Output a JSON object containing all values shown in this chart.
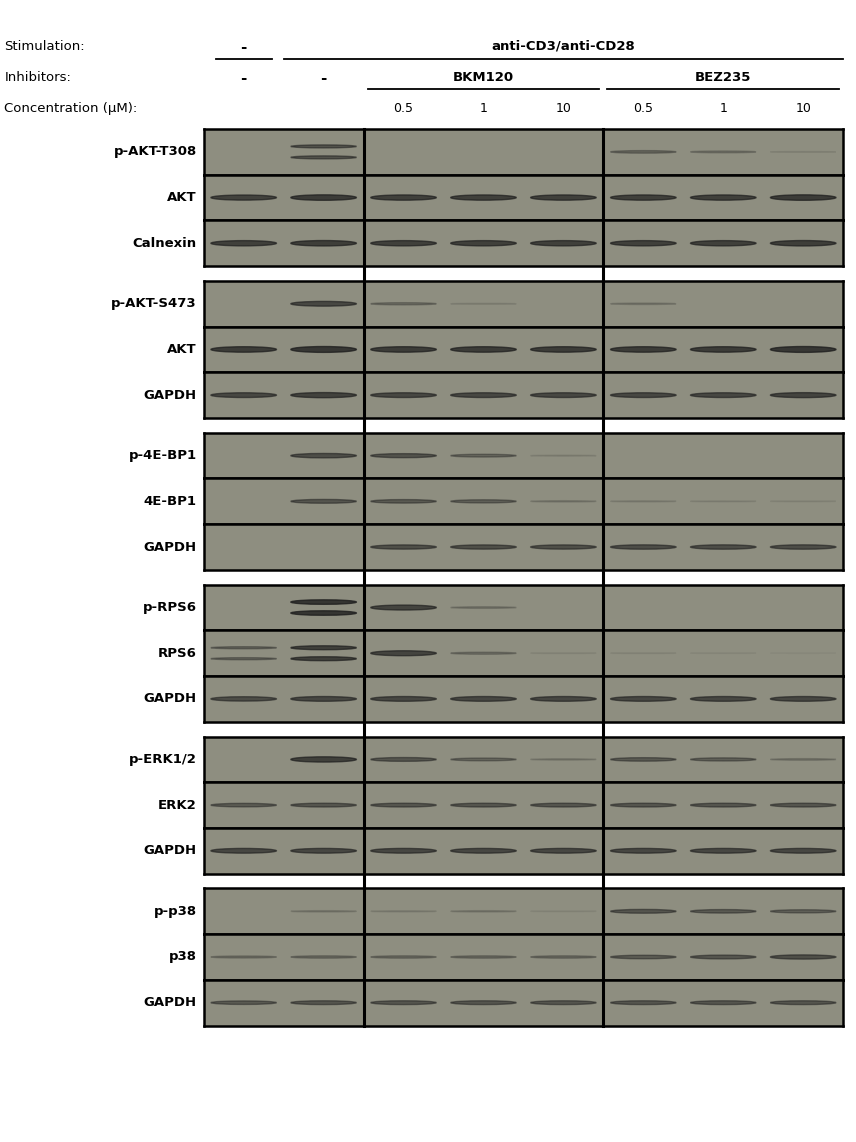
{
  "stimulation_label": "Stimulation:",
  "inhibitors_label": "Inhibitors:",
  "concentration_label": "Concentration (μM):",
  "concentration_values": [
    "0.5",
    "1",
    "10",
    "0.5",
    "1",
    "10"
  ],
  "all_groups": [
    {
      "rows": [
        {
          "label": "p-AKT-T308",
          "lane_intensities": [
            0.0,
            0.55,
            0.0,
            0.0,
            0.0,
            0.35,
            0.25,
            0.1
          ],
          "n_bands": [
            0,
            2,
            0,
            0,
            0,
            1,
            1,
            1
          ],
          "bold_label": true
        },
        {
          "label": "AKT",
          "lane_intensities": [
            0.7,
            0.75,
            0.72,
            0.72,
            0.72,
            0.72,
            0.72,
            0.75
          ],
          "n_bands": [
            1,
            1,
            1,
            1,
            1,
            1,
            1,
            1
          ],
          "bold_label": false
        },
        {
          "label": "Calnexin",
          "lane_intensities": [
            0.72,
            0.74,
            0.72,
            0.72,
            0.72,
            0.72,
            0.72,
            0.74
          ],
          "n_bands": [
            1,
            1,
            1,
            1,
            1,
            1,
            1,
            1
          ],
          "bold_label": false
        }
      ]
    },
    {
      "rows": [
        {
          "label": "p-AKT-S473",
          "lane_intensities": [
            0.0,
            0.65,
            0.3,
            0.12,
            0.0,
            0.2,
            0.0,
            0.0
          ],
          "n_bands": [
            0,
            1,
            1,
            1,
            0,
            1,
            0,
            0
          ],
          "bold_label": true
        },
        {
          "label": "AKT",
          "lane_intensities": [
            0.75,
            0.8,
            0.75,
            0.75,
            0.75,
            0.75,
            0.75,
            0.8
          ],
          "n_bands": [
            1,
            1,
            1,
            1,
            1,
            1,
            1,
            1
          ],
          "bold_label": false
        },
        {
          "label": "GAPDH",
          "lane_intensities": [
            0.65,
            0.7,
            0.65,
            0.65,
            0.65,
            0.65,
            0.65,
            0.68
          ],
          "n_bands": [
            1,
            1,
            1,
            1,
            1,
            1,
            1,
            1
          ],
          "bold_label": false
        }
      ]
    },
    {
      "rows": [
        {
          "label": "p-4E-BP1",
          "lane_intensities": [
            0.0,
            0.6,
            0.55,
            0.38,
            0.12,
            0.0,
            0.0,
            0.0
          ],
          "n_bands": [
            0,
            1,
            1,
            1,
            1,
            0,
            0,
            0
          ],
          "bold_label": true
        },
        {
          "label": "4E-BP1",
          "lane_intensities": [
            0.0,
            0.52,
            0.48,
            0.43,
            0.18,
            0.14,
            0.11,
            0.09
          ],
          "n_bands": [
            0,
            1,
            1,
            1,
            1,
            1,
            1,
            1
          ],
          "bold_label": false
        },
        {
          "label": "GAPDH",
          "lane_intensities": [
            0.0,
            0.0,
            0.58,
            0.58,
            0.58,
            0.6,
            0.6,
            0.6
          ],
          "n_bands": [
            0,
            0,
            1,
            1,
            1,
            1,
            1,
            1
          ],
          "bold_label": false
        }
      ]
    },
    {
      "rows": [
        {
          "label": "p-RPS6",
          "lane_intensities": [
            0.0,
            0.82,
            0.68,
            0.22,
            0.0,
            0.0,
            0.0,
            0.0
          ],
          "n_bands": [
            0,
            2,
            1,
            1,
            0,
            0,
            0,
            0
          ],
          "bold_label": true
        },
        {
          "label": "RPS6",
          "lane_intensities": [
            0.38,
            0.72,
            0.68,
            0.28,
            0.08,
            0.08,
            0.06,
            0.04
          ],
          "n_bands": [
            2,
            2,
            1,
            1,
            1,
            1,
            1,
            1
          ],
          "bold_label": false
        },
        {
          "label": "GAPDH",
          "lane_intensities": [
            0.6,
            0.65,
            0.65,
            0.65,
            0.65,
            0.65,
            0.65,
            0.65
          ],
          "n_bands": [
            1,
            1,
            1,
            1,
            1,
            1,
            1,
            1
          ],
          "bold_label": false
        }
      ]
    },
    {
      "rows": [
        {
          "label": "p-ERK1/2",
          "lane_intensities": [
            0.0,
            0.72,
            0.52,
            0.38,
            0.18,
            0.48,
            0.43,
            0.22
          ],
          "n_bands": [
            0,
            1,
            1,
            1,
            1,
            1,
            1,
            1
          ],
          "bold_label": true
        },
        {
          "label": "ERK2",
          "lane_intensities": [
            0.48,
            0.52,
            0.52,
            0.52,
            0.52,
            0.52,
            0.52,
            0.52
          ],
          "n_bands": [
            1,
            1,
            1,
            1,
            1,
            1,
            1,
            1
          ],
          "bold_label": false
        },
        {
          "label": "GAPDH",
          "lane_intensities": [
            0.65,
            0.65,
            0.65,
            0.65,
            0.65,
            0.65,
            0.65,
            0.65
          ],
          "n_bands": [
            1,
            1,
            1,
            1,
            1,
            1,
            1,
            1
          ],
          "bold_label": false
        }
      ]
    },
    {
      "rows": [
        {
          "label": "p-p38",
          "lane_intensities": [
            0.0,
            0.18,
            0.14,
            0.18,
            0.08,
            0.52,
            0.48,
            0.43
          ],
          "n_bands": [
            0,
            1,
            1,
            1,
            1,
            1,
            1,
            1
          ],
          "bold_label": true
        },
        {
          "label": "p38",
          "lane_intensities": [
            0.28,
            0.32,
            0.32,
            0.32,
            0.32,
            0.48,
            0.52,
            0.58
          ],
          "n_bands": [
            1,
            1,
            1,
            1,
            1,
            1,
            1,
            1
          ],
          "bold_label": false
        },
        {
          "label": "GAPDH",
          "lane_intensities": [
            0.48,
            0.52,
            0.52,
            0.52,
            0.52,
            0.52,
            0.52,
            0.52
          ],
          "n_bands": [
            1,
            1,
            1,
            1,
            1,
            1,
            1,
            1
          ],
          "bold_label": false
        }
      ]
    }
  ],
  "bg_color": "#8e8e80",
  "band_dark": "#1c1c1c",
  "white": "#ffffff",
  "black": "#000000",
  "n_lanes": 8,
  "divider_lanes": [
    2,
    5
  ],
  "label_fontsize": 9.5,
  "header_fontsize": 9.5,
  "conc_fontsize": 9.0
}
